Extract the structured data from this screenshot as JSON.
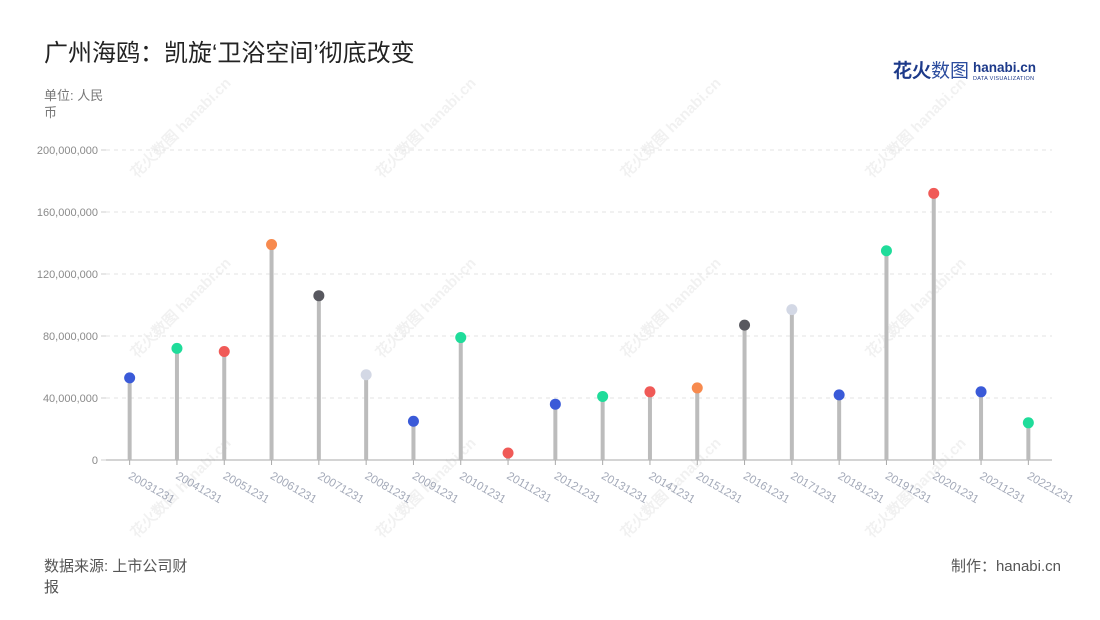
{
  "title": "广州海鸥：凯旋‘卫浴空间’彻底改变",
  "unit_label": "单位: 人民币",
  "source": "数据来源: 上市公司财报",
  "credit": "制作：hanabi.cn",
  "logo": {
    "brand_a": "花火",
    "brand_b": "数图",
    "domain": "hanabi.cn",
    "tagline": "DATA VISUALIZATION"
  },
  "watermark": "花火数图 hanabi.cn",
  "colors": {
    "stem": "#bcbcbc",
    "brand": "#1d3a8a"
  },
  "chart_data": {
    "type": "bar",
    "categories": [
      "20031231",
      "20041231",
      "20051231",
      "20061231",
      "20071231",
      "20081231",
      "20091231",
      "20101231",
      "20111231",
      "20121231",
      "20131231",
      "20141231",
      "20151231",
      "20161231",
      "20171231",
      "20181231",
      "20191231",
      "20201231",
      "20211231",
      "20221231"
    ],
    "values": [
      53000000,
      72000000,
      70000000,
      139000000,
      106000000,
      55000000,
      25000000,
      79000000,
      4500000,
      36000000,
      41000000,
      44000000,
      46500000,
      87000000,
      97000000,
      42000000,
      135000000,
      172000000,
      44000000,
      24000000
    ],
    "point_colors": [
      "#3a5ad8",
      "#1fdc9a",
      "#f05a57",
      "#f78a4e",
      "#58585f",
      "#d3d8e5",
      "#3a5ad8",
      "#1fdc9a",
      "#f05a57",
      "#3a5ad8",
      "#1fdc9a",
      "#f05a57",
      "#f78a4e",
      "#58585f",
      "#d3d8e5",
      "#3a5ad8",
      "#1fdc9a",
      "#f05a57",
      "#3a5ad8",
      "#1fdc9a"
    ],
    "ylim": [
      0,
      200000000
    ],
    "yticks": [
      0,
      40000000,
      80000000,
      120000000,
      160000000,
      200000000
    ],
    "ytick_labels": [
      "0",
      "40,000,000",
      "80,000,000",
      "120,000,000",
      "160,000,000",
      "200,000,000"
    ],
    "grid": true
  }
}
